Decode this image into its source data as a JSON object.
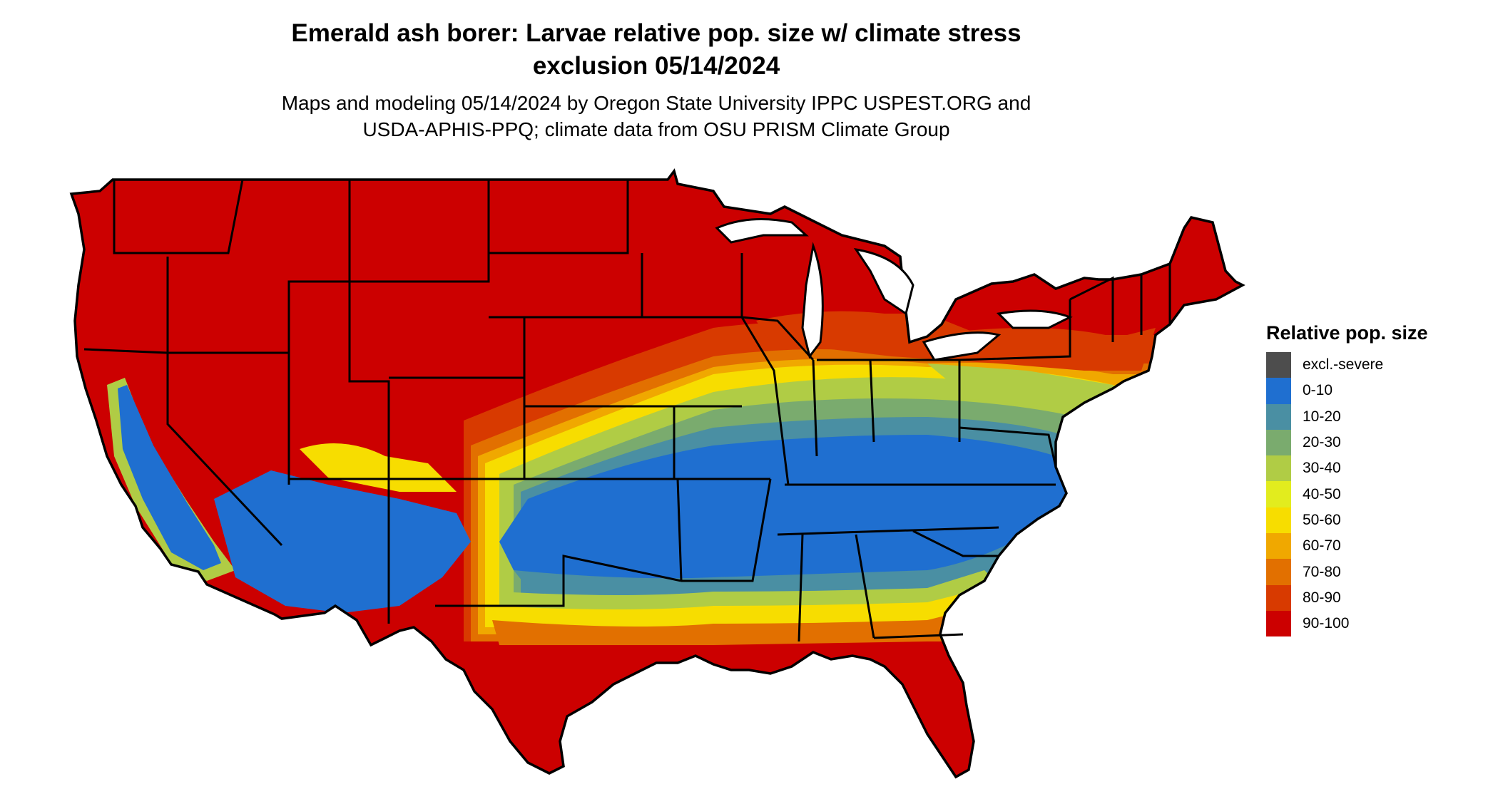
{
  "header": {
    "title_line1": "Emerald ash borer: Larvae relative pop. size w/ climate stress",
    "title_line2": "exclusion 05/14/2024",
    "subtitle_line1": "Maps and modeling 05/14/2024 by Oregon State University IPPC USPEST.ORG and",
    "subtitle_line2": "USDA-APHIS-PPQ; climate data from OSU PRISM Climate Group"
  },
  "legend": {
    "title": "Relative pop. size",
    "items": [
      {
        "label": "excl.-severe",
        "color": "#4d4d4d"
      },
      {
        "label": "0-10",
        "color": "#1f6fd0"
      },
      {
        "label": "10-20",
        "color": "#4a8fa3"
      },
      {
        "label": "20-30",
        "color": "#7aab6e"
      },
      {
        "label": "30-40",
        "color": "#b0cc45"
      },
      {
        "label": "40-50",
        "color": "#e2ec1e"
      },
      {
        "label": "50-60",
        "color": "#f7dd00"
      },
      {
        "label": "60-70",
        "color": "#f0a800"
      },
      {
        "label": "70-80",
        "color": "#e27000"
      },
      {
        "label": "80-90",
        "color": "#d83a00"
      },
      {
        "label": "90-100",
        "color": "#cc0000"
      }
    ]
  }
}
